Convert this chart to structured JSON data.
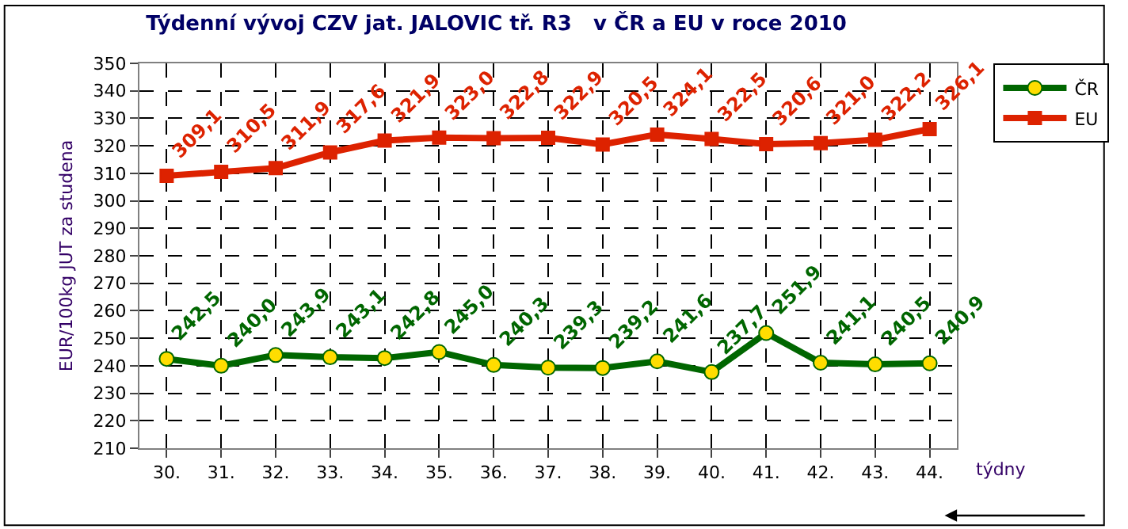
{
  "chart_data": {
    "type": "line",
    "title": "Týdenní vývoj CZV jat. JALOVIC tř. R3   v ČR a EU v roce 2010",
    "xlabel": "týdny",
    "ylabel": "EUR/100kg JUT za studena",
    "categories": [
      "30.",
      "31.",
      "32.",
      "33.",
      "34.",
      "35.",
      "36.",
      "37.",
      "38.",
      "39.",
      "40.",
      "41.",
      "42.",
      "43.",
      "44."
    ],
    "series": [
      {
        "name": "ČR",
        "color": "#006600",
        "marker": "circle",
        "values": [
          242.5,
          240.0,
          243.9,
          243.1,
          242.8,
          245.0,
          240.3,
          239.3,
          239.2,
          241.6,
          237.7,
          251.9,
          241.1,
          240.5,
          240.9
        ],
        "value_labels": [
          "242,5",
          "240,0",
          "243,9",
          "243,1",
          "242,8",
          "245,0",
          "240,3",
          "239,3",
          "239,2",
          "241,6",
          "237,7",
          "251,9",
          "241,1",
          "240,5",
          "240,9"
        ]
      },
      {
        "name": "EU",
        "color": "#dd2200",
        "marker": "square",
        "values": [
          309.1,
          310.5,
          311.9,
          317.6,
          321.9,
          323.0,
          322.8,
          322.9,
          320.5,
          324.1,
          322.5,
          320.6,
          321.0,
          322.2,
          326.1
        ],
        "value_labels": [
          "309,1",
          "310,5",
          "311,9",
          "317,6",
          "321,9",
          "323,0",
          "322,8",
          "322,9",
          "320,5",
          "324,1",
          "322,5",
          "320,6",
          "321,0",
          "322,2",
          "326,1"
        ]
      }
    ],
    "ylim": [
      210,
      350
    ],
    "yticks": [
      210,
      220,
      230,
      240,
      250,
      260,
      270,
      280,
      290,
      300,
      310,
      320,
      330,
      340,
      350
    ],
    "grid": true,
    "legend": "right",
    "line_style": "solid"
  }
}
